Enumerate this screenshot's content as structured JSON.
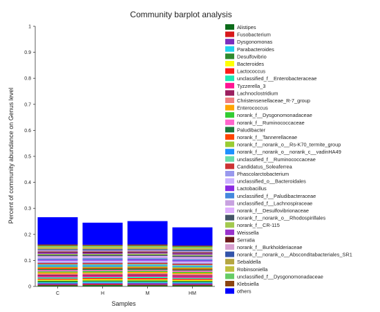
{
  "chart_data": {
    "type": "bar",
    "stacked": true,
    "title": "Community barplot analysis",
    "xlabel": "Samples",
    "ylabel": "Percent of community abundance on Genus level",
    "ylim": [
      0,
      1
    ],
    "yticks": [
      "0",
      "0.1",
      "0.2",
      "0.3",
      "0.4",
      "0.5",
      "0.6",
      "0.7",
      "0.8",
      "0.9",
      "1"
    ],
    "categories": [
      "C",
      "H",
      "M",
      "HM"
    ],
    "legend_position": "right",
    "series": [
      {
        "name": "Alistipes",
        "color": "#0b6b1a",
        "values": [
          0.004,
          0.005,
          0.004,
          0.004
        ]
      },
      {
        "name": "Fusobacterium",
        "color": "#d7191c",
        "values": [
          0.003,
          0.004,
          0.003,
          0.003
        ]
      },
      {
        "name": "Dysgonomonas",
        "color": "#7b2fbe",
        "values": [
          0.005,
          0.004,
          0.006,
          0.005
        ]
      },
      {
        "name": "Parabacteroides",
        "color": "#22d3ee",
        "values": [
          0.004,
          0.005,
          0.004,
          0.004
        ]
      },
      {
        "name": "Desulfovibrio",
        "color": "#2e8b2e",
        "values": [
          0.006,
          0.005,
          0.006,
          0.005
        ]
      },
      {
        "name": "Bacteroides",
        "color": "#ffff00",
        "values": [
          0.004,
          0.005,
          0.004,
          0.004
        ]
      },
      {
        "name": "Lactococcus",
        "color": "#ff1a1a",
        "values": [
          0.004,
          0.004,
          0.005,
          0.004
        ]
      },
      {
        "name": "unclassified_f__Enterobacteraceae",
        "color": "#1de9b6",
        "values": [
          0.005,
          0.004,
          0.005,
          0.004
        ]
      },
      {
        "name": "Tyzzerella_3",
        "color": "#ff1493",
        "values": [
          0.004,
          0.005,
          0.004,
          0.005
        ]
      },
      {
        "name": "Lachnoclostridium",
        "color": "#9b1f5f",
        "values": [
          0.006,
          0.005,
          0.006,
          0.005
        ]
      },
      {
        "name": "Christensenellaceae_R-7_group",
        "color": "#f08080",
        "values": [
          0.004,
          0.004,
          0.004,
          0.005
        ]
      },
      {
        "name": "Enterococcus",
        "color": "#ffa500",
        "values": [
          0.005,
          0.004,
          0.005,
          0.004
        ]
      },
      {
        "name": "norank_f__Dysgonomonadaceae",
        "color": "#33cc33",
        "values": [
          0.004,
          0.005,
          0.004,
          0.004
        ]
      },
      {
        "name": "norank_f__Ruminococcaceae",
        "color": "#ff66cc",
        "values": [
          0.005,
          0.004,
          0.004,
          0.005
        ]
      },
      {
        "name": "Paludibacter",
        "color": "#1a7a3a",
        "values": [
          0.004,
          0.005,
          0.005,
          0.004
        ]
      },
      {
        "name": "norank_f__Tannerellaceae",
        "color": "#ff4500",
        "values": [
          0.005,
          0.004,
          0.004,
          0.004
        ]
      },
      {
        "name": "norank_f__norank_o__Rs-K70_termite_group",
        "color": "#99cc33",
        "values": [
          0.004,
          0.004,
          0.005,
          0.005
        ]
      },
      {
        "name": "norank_f__norank_o__norank_c__vadinHA49",
        "color": "#1e90ff",
        "values": [
          0.005,
          0.005,
          0.004,
          0.004
        ]
      },
      {
        "name": "unclassified_f__Ruminococcaceae",
        "color": "#66ddaa",
        "values": [
          0.004,
          0.004,
          0.004,
          0.004
        ]
      },
      {
        "name": "Candidatus_Soleaferrea",
        "color": "#cc3333",
        "values": [
          0.005,
          0.005,
          0.005,
          0.005
        ]
      },
      {
        "name": "Phascolarctobacterium",
        "color": "#9999ee",
        "values": [
          0.004,
          0.004,
          0.004,
          0.004
        ]
      },
      {
        "name": "unclassified_o__Bacteroidales",
        "color": "#ccb3ff",
        "values": [
          0.005,
          0.005,
          0.004,
          0.005
        ]
      },
      {
        "name": "Lactobacillus",
        "color": "#8a2be2",
        "values": [
          0.004,
          0.004,
          0.005,
          0.004
        ]
      },
      {
        "name": "unclassified_f__Paludibacteraceae",
        "color": "#4488dd",
        "values": [
          0.004,
          0.005,
          0.004,
          0.004
        ]
      },
      {
        "name": "unclassified_f__Lachnospiraceae",
        "color": "#c8a2e0",
        "values": [
          0.005,
          0.004,
          0.005,
          0.005
        ]
      },
      {
        "name": "norank_f__Desulfovibrionaceae",
        "color": "#e0b0ff",
        "values": [
          0.004,
          0.004,
          0.004,
          0.004
        ]
      },
      {
        "name": "norank_f__norank_o__Rhodospirillales",
        "color": "#445566",
        "values": [
          0.005,
          0.005,
          0.004,
          0.005
        ]
      },
      {
        "name": "norank_f__CR-115",
        "color": "#a3c94f",
        "values": [
          0.004,
          0.004,
          0.005,
          0.004
        ]
      },
      {
        "name": "Weissella",
        "color": "#9933cc",
        "values": [
          0.005,
          0.004,
          0.004,
          0.005
        ]
      },
      {
        "name": "Serratia",
        "color": "#6b1a1a",
        "values": [
          0.004,
          0.005,
          0.004,
          0.004
        ]
      },
      {
        "name": "norank_f__Burkholderiaceae",
        "color": "#d8a0d0",
        "values": [
          0.005,
          0.004,
          0.005,
          0.004
        ]
      },
      {
        "name": "norank_f__norank_o__Absconditabacteriales_SR1",
        "color": "#3355aa",
        "values": [
          0.004,
          0.005,
          0.004,
          0.005
        ]
      },
      {
        "name": "Sebaldella",
        "color": "#b5a642",
        "values": [
          0.004,
          0.004,
          0.004,
          0.004
        ]
      },
      {
        "name": "Robinsoniella",
        "color": "#bfbf40",
        "values": [
          0.005,
          0.005,
          0.005,
          0.004
        ]
      },
      {
        "name": "unclassified_f__Dysgonomonadaceae",
        "color": "#66cc66",
        "values": [
          0.004,
          0.004,
          0.004,
          0.005
        ]
      },
      {
        "name": "Klebsiella",
        "color": "#8b4513",
        "values": [
          0.005,
          0.004,
          0.005,
          0.004
        ]
      },
      {
        "name": "others",
        "color": "#0000ff",
        "values": [
          0.105,
          0.085,
          0.09,
          0.07
        ]
      }
    ]
  }
}
